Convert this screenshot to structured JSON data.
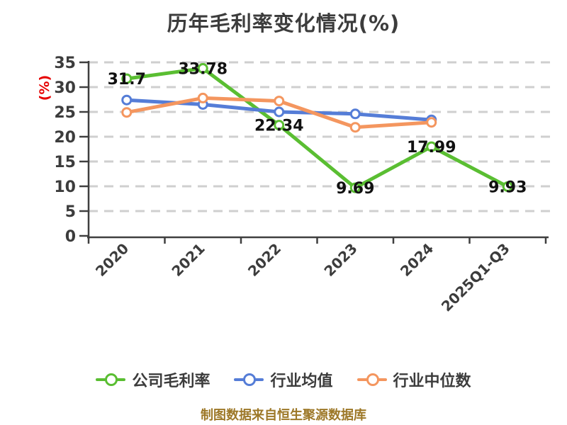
{
  "title": "历年毛利率变化情况(%)",
  "footer": {
    "caption": "制图数据来自恒生聚源数据库"
  },
  "chart_data": {
    "type": "line",
    "title": "历年毛利率变化情况(%)",
    "xlabel": "",
    "ylabel": "(%)",
    "categories": [
      "2020",
      "2021",
      "2022",
      "2023",
      "2024",
      "2025Q1-Q3"
    ],
    "yticks": [
      0,
      5,
      10,
      15,
      20,
      25,
      30,
      35
    ],
    "ylim": [
      0,
      35
    ],
    "grid": "horizontal-dashed",
    "legend_position": "bottom",
    "series": [
      {
        "name": "公司毛利率",
        "color": "#5abe32",
        "values": [
          31.7,
          33.78,
          22.34,
          9.69,
          17.99,
          9.93
        ],
        "data_labels": [
          "31.7",
          "33.78",
          "22.34",
          "9.69",
          "17.99",
          "9.93"
        ]
      },
      {
        "name": "行业均值",
        "color": "#557dd7",
        "values": [
          27.4,
          26.5,
          25.0,
          24.6,
          23.4,
          null
        ],
        "data_labels": null
      },
      {
        "name": "行业中位数",
        "color": "#f4965f",
        "values": [
          24.9,
          27.8,
          27.2,
          21.9,
          22.9,
          null
        ],
        "data_labels": null
      }
    ],
    "colors": {
      "axis": "#3f3f3f",
      "grid": "#cfcfcf",
      "tick_label": "#3c3c3c",
      "data_label": "#111111",
      "title": "#3c3c3c",
      "ylabel": "#e60000",
      "caption": "#9d7828",
      "marker_fill": "#ffffff"
    }
  }
}
